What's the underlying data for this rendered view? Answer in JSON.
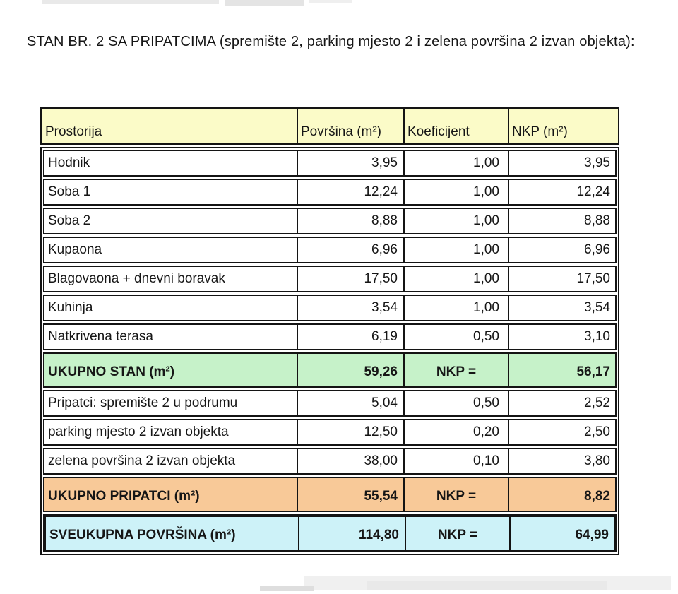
{
  "title": "STAN BR. 2 SA PRIPATCIMA (spremište 2, parking mjesto 2 i zelena površina 2 izvan objekta):",
  "table": {
    "headers": [
      "Prostorija",
      "Površina (m²)",
      "Koeficijent",
      "NKP (m²)"
    ],
    "rows": [
      {
        "type": "data",
        "label": "Hodnik",
        "povrsina": "3,95",
        "koeficijent": "1,00",
        "nkp": "3,95"
      },
      {
        "type": "data",
        "label": "Soba 1",
        "povrsina": "12,24",
        "koeficijent": "1,00",
        "nkp": "12,24"
      },
      {
        "type": "data",
        "label": "Soba 2",
        "povrsina": "8,88",
        "koeficijent": "1,00",
        "nkp": "8,88"
      },
      {
        "type": "data",
        "label": "Kupaona",
        "povrsina": "6,96",
        "koeficijent": "1,00",
        "nkp": "6,96"
      },
      {
        "type": "data",
        "label": "Blagovaona + dnevni boravak",
        "povrsina": "17,50",
        "koeficijent": "1,00",
        "nkp": "17,50"
      },
      {
        "type": "data",
        "label": "Kuhinja",
        "povrsina": "3,54",
        "koeficijent": "1,00",
        "nkp": "3,54"
      },
      {
        "type": "data",
        "label": "Natkrivena terasa",
        "povrsina": "6,19",
        "koeficijent": "0,50",
        "nkp": "3,10"
      },
      {
        "type": "green",
        "label": "UKUPNO STAN (m²)",
        "povrsina": "59,26",
        "koeficijent": "NKP =",
        "nkp": "56,17"
      },
      {
        "type": "data",
        "label": "Pripatci: spremište 2 u podrumu",
        "povrsina": "5,04",
        "koeficijent": "0,50",
        "nkp": "2,52"
      },
      {
        "type": "data",
        "label": "parking mjesto 2 izvan objekta",
        "povrsina": "12,50",
        "koeficijent": "0,20",
        "nkp": "2,50"
      },
      {
        "type": "data",
        "label": "zelena površina 2 izvan objekta",
        "povrsina": "38,00",
        "koeficijent": "0,10",
        "nkp": "3,80"
      },
      {
        "type": "orange",
        "label": "UKUPNO PRIPATCI (m²)",
        "povrsina": "55,54",
        "koeficijent": "NKP =",
        "nkp": "8,82"
      },
      {
        "type": "cyan",
        "label": "SVEUKUPNA POVRŠINA (m²)",
        "povrsina": "114,80",
        "koeficijent": "NKP =",
        "nkp": "64,99"
      }
    ]
  },
  "colors": {
    "header_bg": "#fbfbc8",
    "total_stan_bg": "#c6f2c9",
    "total_pripatci_bg": "#f8c998",
    "total_sveukupno_bg": "#cdf2f8",
    "border": "#141414"
  }
}
